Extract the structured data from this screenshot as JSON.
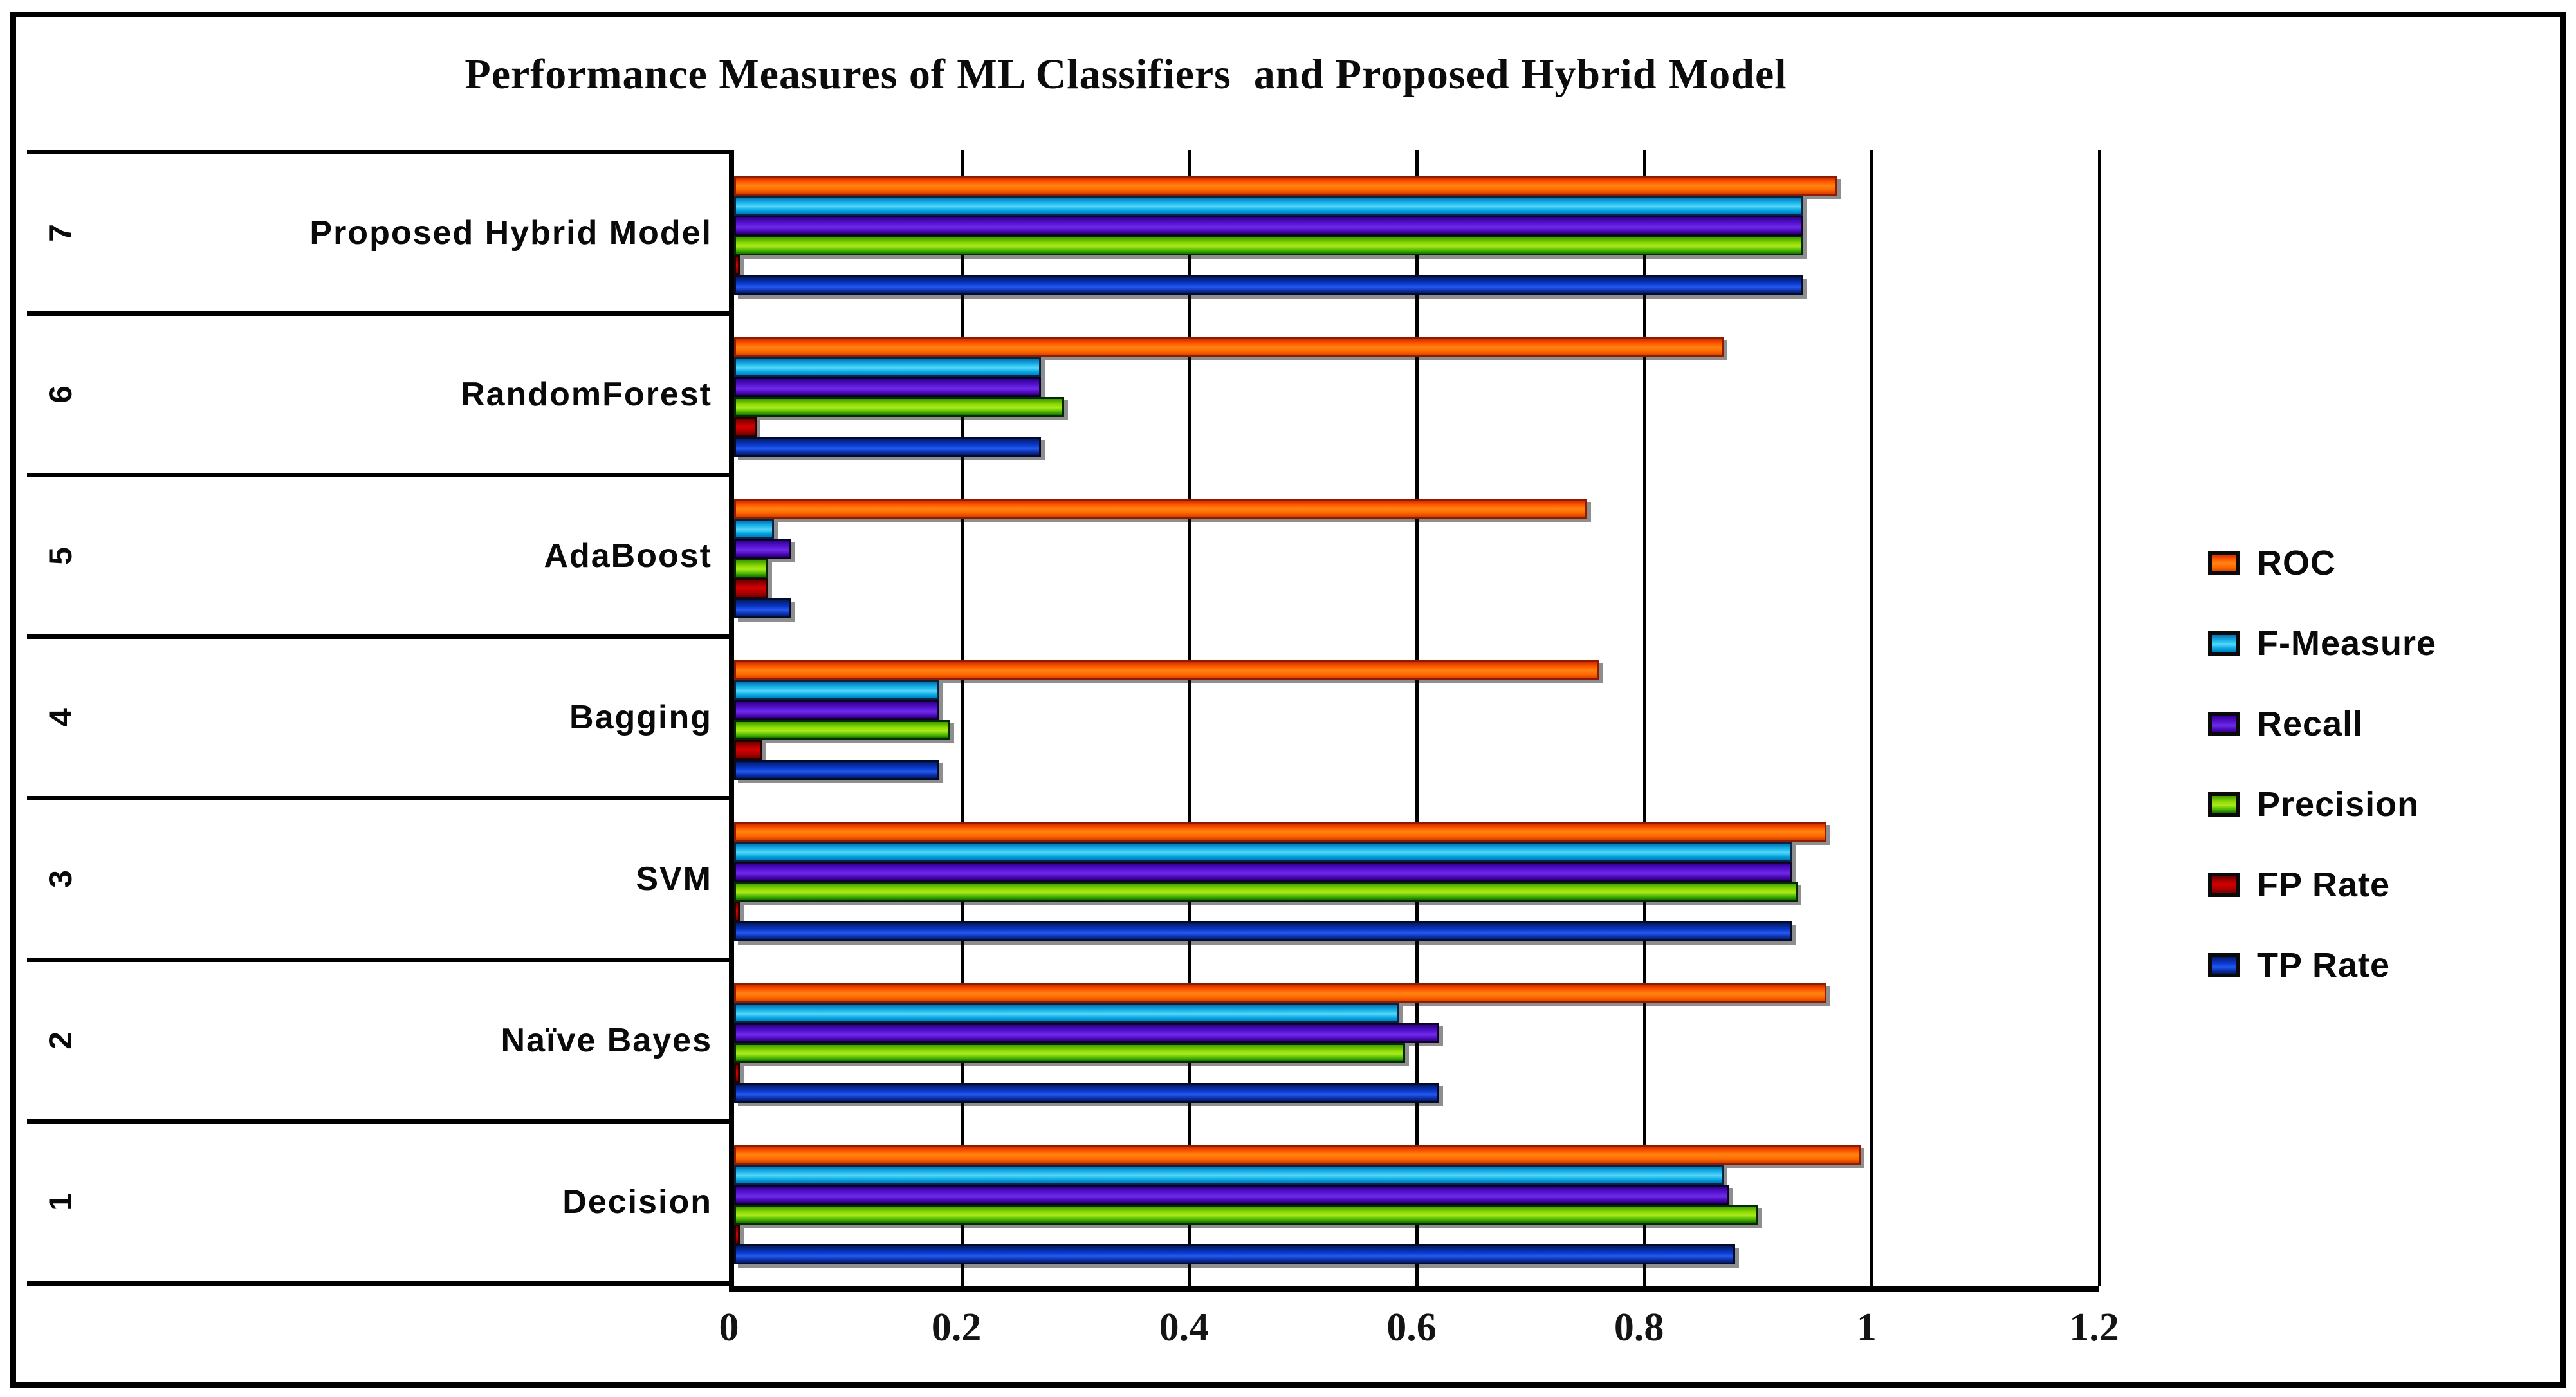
{
  "title": "Performance Measures of ML Classifiers  and Proposed Hybrid Model",
  "axis": {
    "ticks": [
      "0",
      "0.2",
      "0.4",
      "0.6",
      "0.8",
      "1",
      "1.2"
    ],
    "max": 1.2
  },
  "legend": {
    "position": "right",
    "entries": [
      "ROC",
      "F-Measure",
      "Recall",
      "Precision",
      "FP Rate",
      "TP Rate"
    ]
  },
  "colors": {
    "roc": "#ff6a00",
    "f_measure": "#14b2ea",
    "recall": "#5a14d4",
    "precision": "#8fdc04",
    "fp_rate": "#d40000",
    "tp_rate": "#0b3cd0"
  },
  "chart_data": {
    "type": "bar",
    "orientation": "horizontal",
    "title": "Performance Measures of ML Classifiers  and Proposed Hybrid Model",
    "xlabel": "",
    "ylabel": "",
    "xlim": [
      0,
      1.2
    ],
    "gridlines": [
      0.2,
      0.4,
      0.6,
      0.8,
      1.0,
      1.2
    ],
    "legend_position": "right",
    "categories": [
      {
        "index": "7",
        "label": "Proposed Hybrid Model"
      },
      {
        "index": "6",
        "label": "RandomForest"
      },
      {
        "index": "5",
        "label": "AdaBoost"
      },
      {
        "index": "4",
        "label": "Bagging"
      },
      {
        "index": "3",
        "label": "SVM"
      },
      {
        "index": "2",
        "label": "Naïve Bayes"
      },
      {
        "index": "1",
        "label": "Decision"
      }
    ],
    "series": [
      {
        "name": "ROC",
        "key": "roc",
        "values": [
          0.97,
          0.87,
          0.75,
          0.76,
          0.96,
          0.96,
          0.99
        ]
      },
      {
        "name": "F-Measure",
        "key": "f_measure",
        "values": [
          0.94,
          0.27,
          0.035,
          0.18,
          0.93,
          0.585,
          0.87
        ]
      },
      {
        "name": "Recall",
        "key": "recall",
        "values": [
          0.94,
          0.27,
          0.05,
          0.18,
          0.93,
          0.62,
          0.875
        ]
      },
      {
        "name": "Precision",
        "key": "precision",
        "values": [
          0.94,
          0.29,
          0.03,
          0.19,
          0.935,
          0.59,
          0.9
        ]
      },
      {
        "name": "FP Rate",
        "key": "fp_rate",
        "values": [
          0.005,
          0.02,
          0.03,
          0.025,
          0.005,
          0.005,
          0.005
        ]
      },
      {
        "name": "TP Rate",
        "key": "tp_rate",
        "values": [
          0.94,
          0.27,
          0.05,
          0.18,
          0.93,
          0.62,
          0.88
        ]
      }
    ]
  }
}
